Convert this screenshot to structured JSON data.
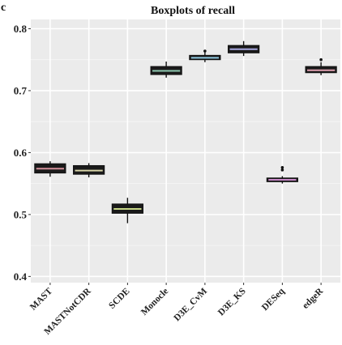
{
  "panel_label": "c",
  "chart_data": {
    "type": "boxplot",
    "title": "Boxplots of recall",
    "xlabel": "",
    "ylabel": "",
    "ylim": [
      0.39,
      0.815
    ],
    "yticks": [
      0.4,
      0.5,
      0.6,
      0.7,
      0.8
    ],
    "ytick_labels": [
      "0.4",
      "0.5",
      "0.6",
      "0.7",
      "0.8"
    ],
    "grid": true,
    "background": "#ebebeb",
    "box_fill": "#1a1a1a",
    "categories": [
      "MAST",
      "MASTNotCDR",
      "SCDE",
      "Monocle",
      "D3E_CvM",
      "D3E_KS",
      "DESeq",
      "edgeR"
    ],
    "boxes": [
      {
        "name": "MAST",
        "whisker_low": 0.561,
        "q1": 0.567,
        "median": 0.574,
        "q3": 0.582,
        "whisker_high": 0.586,
        "outliers": [],
        "median_color": "#d4919b"
      },
      {
        "name": "MASTNotCDR",
        "whisker_low": 0.56,
        "q1": 0.565,
        "median": 0.571,
        "q3": 0.579,
        "whisker_high": 0.583,
        "outliers": [],
        "median_color": "#d8d4a8"
      },
      {
        "name": "SCDE",
        "whisker_low": 0.486,
        "q1": 0.502,
        "median": 0.509,
        "q3": 0.517,
        "whisker_high": 0.527,
        "outliers": [],
        "median_color": "#c8d888"
      },
      {
        "name": "Monocle",
        "whisker_low": 0.721,
        "q1": 0.726,
        "median": 0.732,
        "q3": 0.739,
        "whisker_high": 0.747,
        "outliers": [],
        "median_color": "#8ec8b0"
      },
      {
        "name": "D3E_CvM",
        "whisker_low": 0.746,
        "q1": 0.75,
        "median": 0.753,
        "q3": 0.757,
        "whisker_high": 0.762,
        "outliers": [
          0.764
        ],
        "median_color": "#8ec8e0"
      },
      {
        "name": "D3E_KS",
        "whisker_low": 0.756,
        "q1": 0.761,
        "median": 0.767,
        "q3": 0.773,
        "whisker_high": 0.78,
        "outliers": [],
        "median_color": "#a8a8e0"
      },
      {
        "name": "DESeq",
        "whisker_low": 0.55,
        "q1": 0.553,
        "median": 0.556,
        "q3": 0.559,
        "whisker_high": 0.562,
        "outliers": [
          0.572,
          0.576
        ],
        "median_color": "#c888c8"
      },
      {
        "name": "edgeR",
        "whisker_low": 0.725,
        "q1": 0.729,
        "median": 0.733,
        "q3": 0.739,
        "whisker_high": 0.746,
        "outliers": [
          0.75
        ],
        "median_color": "#e0a0b0"
      }
    ]
  }
}
